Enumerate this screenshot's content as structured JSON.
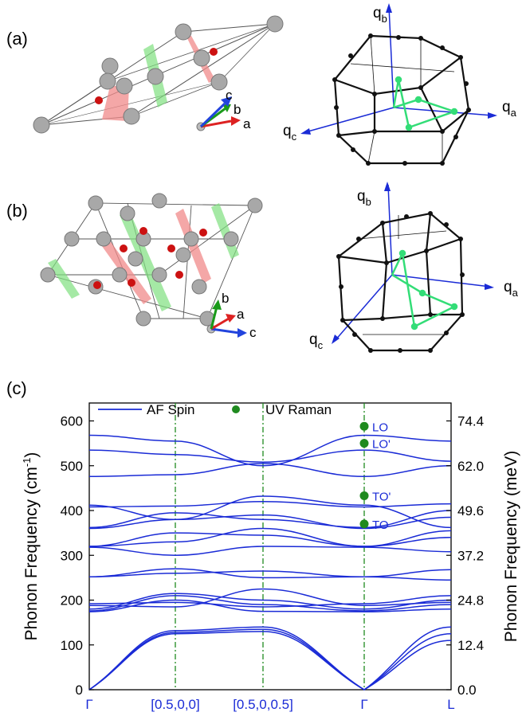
{
  "panels": {
    "a": {
      "label": "(a)",
      "axes": [
        "a",
        "b",
        "c"
      ],
      "bz_axes": {
        "qa": "a",
        "qb": "b",
        "qc": "c"
      }
    },
    "b": {
      "label": "(b)",
      "axes": [
        "a",
        "b",
        "c"
      ],
      "bz_axes": {
        "qa": "a",
        "qb": "b",
        "qc": "c"
      }
    },
    "c": {
      "label": "(c)"
    }
  },
  "q_symbol": "q",
  "colors": {
    "bands": "#1a2bd6",
    "raman": "#1f8a1f",
    "atom_big": "#9a9a9a",
    "atom_small": "#cc1111",
    "plane_red": "#f08a8a",
    "plane_green": "#7fe07f",
    "path_green": "#33dd77"
  },
  "chart_data": {
    "type": "line",
    "title": "",
    "legend": {
      "position": "top",
      "entries": [
        "AF Spin",
        "UV Raman"
      ]
    },
    "ylabel_left": "Phonon Frequency (cm",
    "ylabel_left_sup": "-1",
    "ylabel_left_end": ")",
    "ylabel_right": "Phonon Frequency (meV)",
    "ylim": [
      0,
      640
    ],
    "y_ticks_left": [
      "0",
      "100",
      "200",
      "300",
      "400",
      "500",
      "600"
    ],
    "y_ticks_right": [
      "0.0",
      "12.4",
      "24.8",
      "37.2",
      "49.6",
      "62.0",
      "74.4"
    ],
    "x_labels": [
      "Γ",
      "[0.5,0,0]",
      "[0.5,0,0.5]",
      "Γ",
      "L"
    ],
    "x_positions": [
      0,
      1,
      2,
      3,
      4
    ],
    "segment_positions": [
      0,
      1,
      2,
      3,
      4
    ],
    "raman_points": [
      {
        "label": "LO",
        "value": 588
      },
      {
        "label": "LO'",
        "value": 550
      },
      {
        "label": "TO'",
        "value": 433
      },
      {
        "label": "TO",
        "value": 370
      }
    ],
    "bands": [
      [
        0,
        125,
        130,
        0,
        125
      ],
      [
        0,
        128,
        135,
        0,
        110
      ],
      [
        0,
        132,
        140,
        0,
        140
      ],
      [
        174,
        200,
        175,
        174,
        180
      ],
      [
        176,
        210,
        190,
        176,
        190
      ],
      [
        180,
        215,
        200,
        180,
        200
      ],
      [
        188,
        185,
        225,
        188,
        195
      ],
      [
        192,
        195,
        185,
        192,
        210
      ],
      [
        252,
        270,
        250,
        252,
        268
      ],
      [
        252,
        260,
        265,
        252,
        245
      ],
      [
        318,
        300,
        320,
        318,
        308
      ],
      [
        320,
        350,
        345,
        320,
        340
      ],
      [
        320,
        330,
        360,
        320,
        355
      ],
      [
        360,
        380,
        390,
        360,
        385
      ],
      [
        362,
        395,
        380,
        362,
        400
      ],
      [
        408,
        410,
        420,
        408,
        415
      ],
      [
        412,
        380,
        432,
        412,
        362
      ],
      [
        476,
        480,
        505,
        476,
        500
      ],
      [
        535,
        525,
        508,
        535,
        510
      ],
      [
        568,
        555,
        500,
        568,
        555
      ]
    ]
  }
}
